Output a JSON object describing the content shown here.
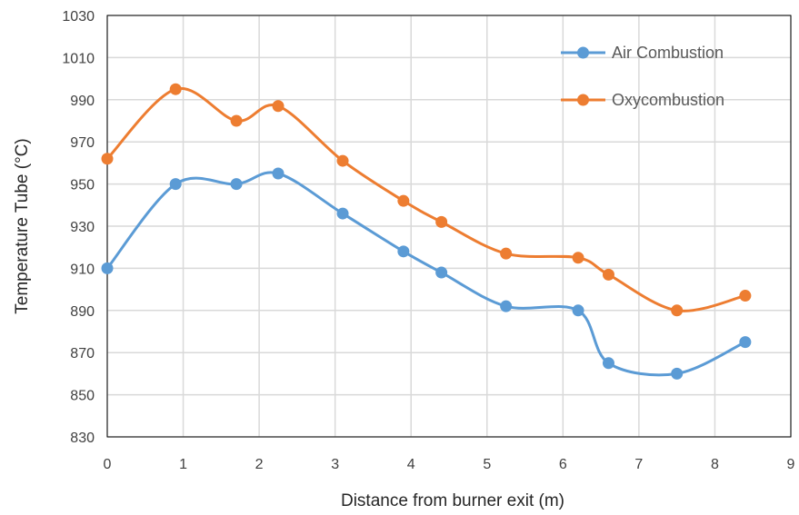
{
  "chart_data": {
    "type": "line",
    "title": "",
    "xlabel": "Distance from burner exit (m)",
    "ylabel": "Temperature Tube (°C)",
    "xlim": [
      0,
      9
    ],
    "ylim": [
      830,
      1030
    ],
    "xticks": [
      0,
      1,
      2,
      3,
      4,
      5,
      6,
      7,
      8,
      9
    ],
    "yticks": [
      830,
      850,
      870,
      890,
      910,
      930,
      950,
      970,
      990,
      1010,
      1030
    ],
    "grid": true,
    "legend_position": "top-right",
    "smooth": true,
    "series": [
      {
        "name": "Air Combustion",
        "color": "#5b9bd5",
        "x": [
          0,
          0.9,
          1.7,
          2.25,
          3.1,
          3.9,
          4.4,
          5.25,
          6.2,
          6.6,
          7.5,
          8.4
        ],
        "y": [
          910,
          950,
          950,
          955,
          936,
          918,
          908,
          892,
          890,
          865,
          860,
          875
        ]
      },
      {
        "name": "Oxycombustion",
        "color": "#ed7d31",
        "x": [
          0,
          0.9,
          1.7,
          2.25,
          3.1,
          3.9,
          4.4,
          5.25,
          6.2,
          6.6,
          7.5,
          8.4
        ],
        "y": [
          962,
          995,
          980,
          987,
          961,
          942,
          932,
          917,
          915,
          907,
          890,
          897
        ]
      }
    ]
  }
}
